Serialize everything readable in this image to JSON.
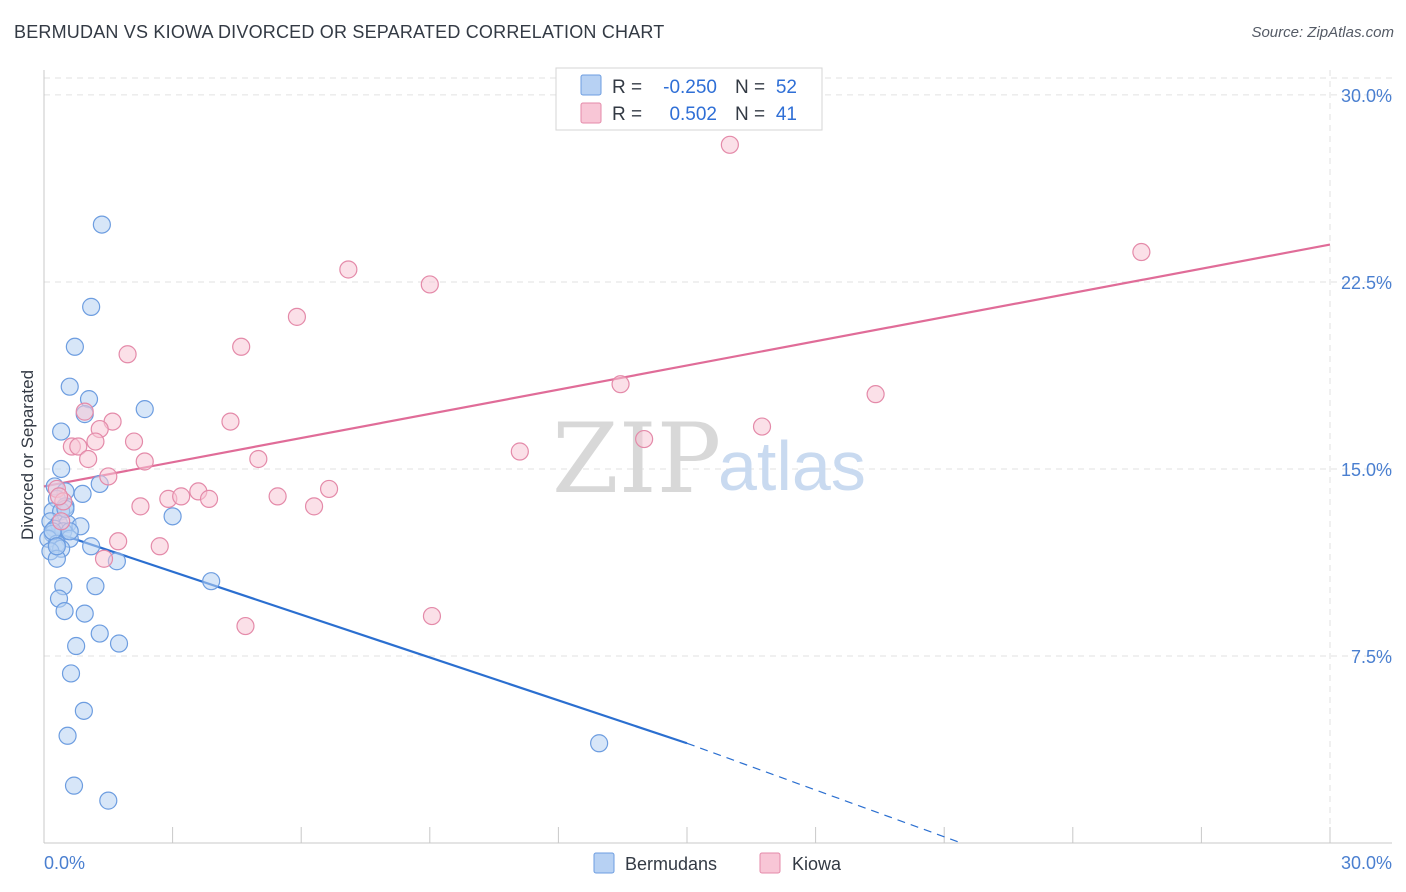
{
  "title": "BERMUDAN VS KIOWA DIVORCED OR SEPARATED CORRELATION CHART",
  "source": "Source: ZipAtlas.com",
  "watermark": {
    "zip": "ZIP",
    "atlas": "atlas"
  },
  "legend": {
    "r_label": "R =",
    "n_label": "N =",
    "series": [
      {
        "name": "Bermudans",
        "r": "-0.250",
        "n": "52",
        "fill": "#b7d1f3",
        "stroke": "#6d9de0"
      },
      {
        "name": "Kiowa",
        "r": "0.502",
        "n": "41",
        "fill": "#f8c6d6",
        "stroke": "#e48aa9"
      }
    ]
  },
  "chart_data": {
    "type": "scatter",
    "title": "BERMUDAN VS KIOWA DIVORCED OR SEPARATED CORRELATION CHART",
    "xlabel": "",
    "ylabel": "Divorced or Separated",
    "xlim": [
      0,
      30
    ],
    "ylim": [
      0,
      31
    ],
    "x_tick_labels": [
      "0.0%",
      "30.0%"
    ],
    "y_ticks": [
      7.5,
      15.0,
      22.5,
      30.0
    ],
    "y_tick_labels": [
      "7.5%",
      "15.0%",
      "22.5%",
      "30.0%"
    ],
    "grid": true,
    "series": [
      {
        "name": "Bermudans",
        "color": "#6d9de0",
        "trend_color": "#2b6fd0",
        "trend": {
          "x0": 0,
          "y0": 12.6,
          "x1": 15.0,
          "y1": 4.0,
          "dash_to_x": 21.4,
          "dash_to_y": 0.0
        },
        "points": [
          [
            1.35,
            24.8
          ],
          [
            1.1,
            21.5
          ],
          [
            0.72,
            19.9
          ],
          [
            0.6,
            18.3
          ],
          [
            1.05,
            17.8
          ],
          [
            2.35,
            17.4
          ],
          [
            0.95,
            17.2
          ],
          [
            0.4,
            16.5
          ],
          [
            0.4,
            15.0
          ],
          [
            0.25,
            14.3
          ],
          [
            0.5,
            14.1
          ],
          [
            0.9,
            14.0
          ],
          [
            1.3,
            14.4
          ],
          [
            0.3,
            13.8
          ],
          [
            0.5,
            13.5
          ],
          [
            0.2,
            13.3
          ],
          [
            0.4,
            13.3
          ],
          [
            0.15,
            12.9
          ],
          [
            0.35,
            12.8
          ],
          [
            0.55,
            12.8
          ],
          [
            0.85,
            12.7
          ],
          [
            0.25,
            12.6
          ],
          [
            0.45,
            12.5
          ],
          [
            0.2,
            12.4
          ],
          [
            0.6,
            12.2
          ],
          [
            0.1,
            12.2
          ],
          [
            0.3,
            12.0
          ],
          [
            0.4,
            11.8
          ],
          [
            0.15,
            11.7
          ],
          [
            1.1,
            11.9
          ],
          [
            0.3,
            11.4
          ],
          [
            1.7,
            11.3
          ],
          [
            3.0,
            13.1
          ],
          [
            3.9,
            10.5
          ],
          [
            0.45,
            10.3
          ],
          [
            1.2,
            10.3
          ],
          [
            0.35,
            9.8
          ],
          [
            0.48,
            9.3
          ],
          [
            0.95,
            9.2
          ],
          [
            1.3,
            8.4
          ],
          [
            0.75,
            7.9
          ],
          [
            1.75,
            8.0
          ],
          [
            0.63,
            6.8
          ],
          [
            0.93,
            5.3
          ],
          [
            0.55,
            4.3
          ],
          [
            0.7,
            2.3
          ],
          [
            1.5,
            1.7
          ],
          [
            12.95,
            4.0
          ],
          [
            0.2,
            12.5
          ],
          [
            0.3,
            11.9
          ],
          [
            0.5,
            13.4
          ],
          [
            0.6,
            12.5
          ]
        ]
      },
      {
        "name": "Kiowa",
        "color": "#e48aa9",
        "trend_color": "#e06c98",
        "trend": {
          "x0": 0,
          "y0": 14.3,
          "x1": 30.0,
          "y1": 24.0
        },
        "points": [
          [
            16.0,
            28.0
          ],
          [
            25.6,
            23.7
          ],
          [
            7.1,
            23.0
          ],
          [
            9.0,
            22.4
          ],
          [
            5.9,
            21.1
          ],
          [
            1.95,
            19.6
          ],
          [
            4.6,
            19.9
          ],
          [
            13.45,
            18.4
          ],
          [
            19.4,
            18.0
          ],
          [
            0.95,
            17.3
          ],
          [
            1.6,
            16.9
          ],
          [
            4.35,
            16.9
          ],
          [
            16.75,
            16.7
          ],
          [
            1.3,
            16.6
          ],
          [
            2.1,
            16.1
          ],
          [
            14.0,
            16.2
          ],
          [
            1.2,
            16.1
          ],
          [
            0.65,
            15.9
          ],
          [
            0.8,
            15.9
          ],
          [
            11.1,
            15.7
          ],
          [
            2.35,
            15.3
          ],
          [
            1.03,
            15.4
          ],
          [
            5.0,
            15.4
          ],
          [
            1.5,
            14.7
          ],
          [
            0.3,
            14.2
          ],
          [
            3.6,
            14.1
          ],
          [
            6.65,
            14.2
          ],
          [
            0.45,
            13.7
          ],
          [
            0.35,
            13.9
          ],
          [
            2.9,
            13.8
          ],
          [
            3.2,
            13.9
          ],
          [
            5.45,
            13.9
          ],
          [
            3.85,
            13.8
          ],
          [
            2.25,
            13.5
          ],
          [
            6.3,
            13.5
          ],
          [
            0.4,
            12.9
          ],
          [
            1.73,
            12.1
          ],
          [
            2.7,
            11.9
          ],
          [
            1.4,
            11.4
          ],
          [
            9.05,
            9.1
          ],
          [
            4.7,
            8.7
          ]
        ]
      }
    ]
  }
}
